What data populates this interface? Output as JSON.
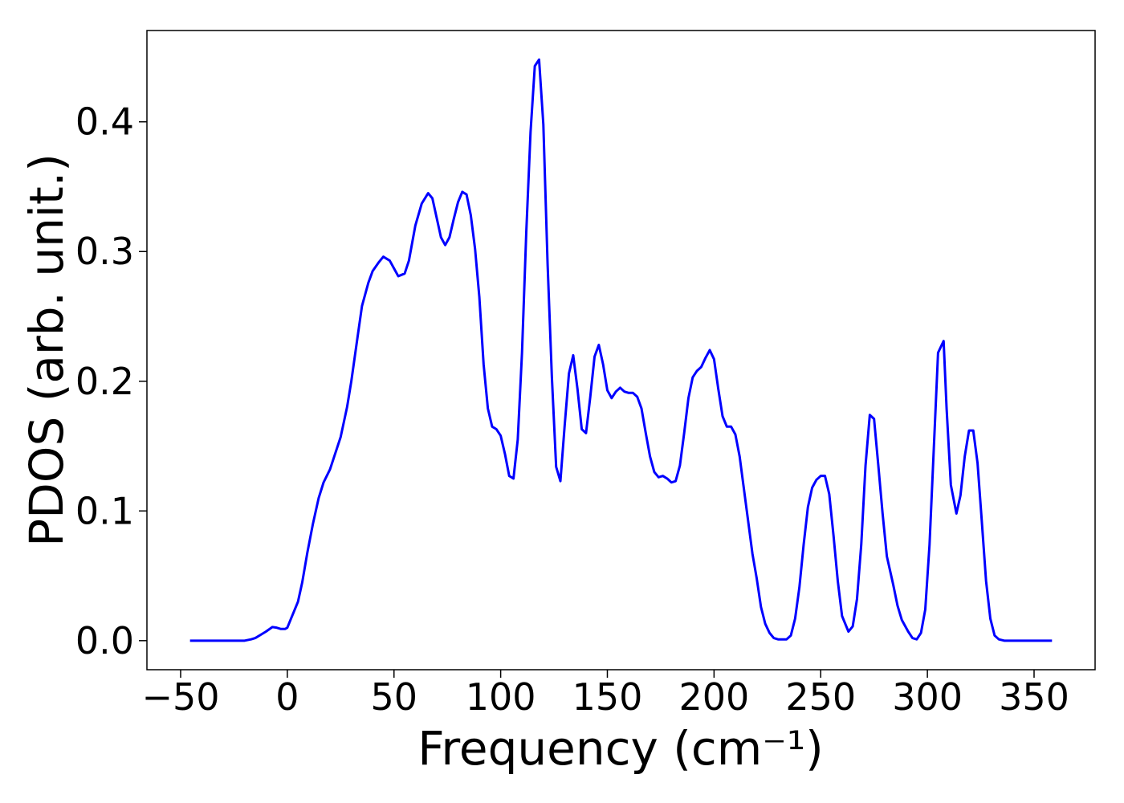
{
  "chart_data": {
    "type": "line",
    "xlabel": "Frequency (cm⁻¹)",
    "ylabel": "PDOS (arb. unit.)",
    "color": "#0000ff",
    "x": [
      -45.6,
      -40,
      -35,
      -30,
      -25,
      -20,
      -17,
      -15,
      -12,
      -10,
      -7,
      -5,
      -3,
      -1,
      0,
      2,
      5,
      7,
      9.4,
      12,
      14.7,
      17,
      20,
      22,
      25,
      28,
      30,
      33,
      35,
      38,
      40,
      43,
      45,
      48,
      50,
      52,
      55,
      57,
      60,
      63,
      66,
      68,
      70,
      72,
      74,
      76,
      78,
      80,
      82,
      84,
      86,
      88,
      90,
      92,
      94,
      96,
      98,
      100,
      102,
      104,
      106,
      108,
      110,
      112,
      114,
      116,
      118,
      120,
      122,
      124,
      126,
      128,
      130,
      132,
      134,
      136,
      138,
      140,
      142,
      144,
      146,
      148,
      150,
      152,
      154,
      156,
      158,
      160,
      162,
      164,
      166,
      168,
      170,
      172,
      174,
      176,
      178,
      180,
      182,
      184,
      186,
      188,
      190,
      192,
      194,
      196,
      198,
      200,
      202,
      204,
      206,
      208,
      210,
      212,
      214,
      216,
      218,
      220,
      222,
      224,
      226,
      228,
      230,
      232,
      234,
      236,
      238,
      240,
      242,
      244,
      246,
      248,
      250,
      252,
      254,
      256,
      258,
      260,
      263,
      265,
      267,
      269,
      271,
      273,
      275,
      277,
      279,
      281,
      284,
      286,
      288,
      291,
      293,
      295,
      297,
      299,
      301,
      303,
      305,
      307.6,
      309,
      311,
      313.6,
      315.5,
      317.5,
      319.5,
      321.5,
      323.5,
      325.5,
      327.5,
      329.5,
      331.5,
      333.5,
      336,
      340,
      345,
      350,
      355,
      358.4
    ],
    "values": [
      0,
      0,
      0,
      0,
      0,
      0,
      0.001,
      0.002,
      0.005,
      0.007,
      0.0105,
      0.01,
      0.009,
      0.009,
      0.01,
      0.018,
      0.03,
      0.045,
      0.068,
      0.09,
      0.11,
      0.122,
      0.132,
      0.142,
      0.157,
      0.18,
      0.2,
      0.235,
      0.258,
      0.276,
      0.285,
      0.292,
      0.296,
      0.293,
      0.287,
      0.281,
      0.283,
      0.293,
      0.32,
      0.337,
      0.345,
      0.341,
      0.326,
      0.311,
      0.305,
      0.311,
      0.325,
      0.338,
      0.346,
      0.344,
      0.328,
      0.302,
      0.265,
      0.213,
      0.179,
      0.165,
      0.163,
      0.158,
      0.144,
      0.127,
      0.125,
      0.155,
      0.222,
      0.315,
      0.392,
      0.443,
      0.448,
      0.398,
      0.29,
      0.203,
      0.134,
      0.123,
      0.166,
      0.206,
      0.22,
      0.194,
      0.163,
      0.16,
      0.188,
      0.219,
      0.228,
      0.213,
      0.193,
      0.187,
      0.192,
      0.195,
      0.192,
      0.191,
      0.191,
      0.188,
      0.179,
      0.16,
      0.142,
      0.13,
      0.126,
      0.127,
      0.125,
      0.122,
      0.123,
      0.135,
      0.16,
      0.187,
      0.203,
      0.208,
      0.211,
      0.218,
      0.224,
      0.217,
      0.194,
      0.173,
      0.165,
      0.165,
      0.159,
      0.142,
      0.117,
      0.092,
      0.067,
      0.048,
      0.026,
      0.013,
      0.006,
      0.002,
      0.001,
      0.001,
      0.001,
      0.004,
      0.017,
      0.041,
      0.074,
      0.103,
      0.118,
      0.124,
      0.127,
      0.127,
      0.113,
      0.081,
      0.046,
      0.019,
      0.007,
      0.011,
      0.032,
      0.074,
      0.135,
      0.174,
      0.171,
      0.135,
      0.098,
      0.065,
      0.043,
      0.027,
      0.016,
      0.007,
      0.002,
      0.001,
      0.006,
      0.024,
      0.074,
      0.148,
      0.222,
      0.231,
      0.179,
      0.12,
      0.098,
      0.112,
      0.142,
      0.162,
      0.162,
      0.137,
      0.092,
      0.046,
      0.017,
      0.004,
      0.001,
      0,
      0,
      0,
      0,
      0,
      0
    ],
    "xlim": [
      -65.8,
      378.6
    ],
    "ylim": [
      -0.0224,
      0.4704
    ],
    "xticks": [
      {
        "value": -50,
        "label": "−50"
      },
      0,
      50,
      100,
      150,
      200,
      250,
      300,
      350
    ],
    "yticks": [
      {
        "value": 0,
        "label": "0.0"
      },
      0.1,
      0.2,
      0.3,
      0.4
    ]
  }
}
